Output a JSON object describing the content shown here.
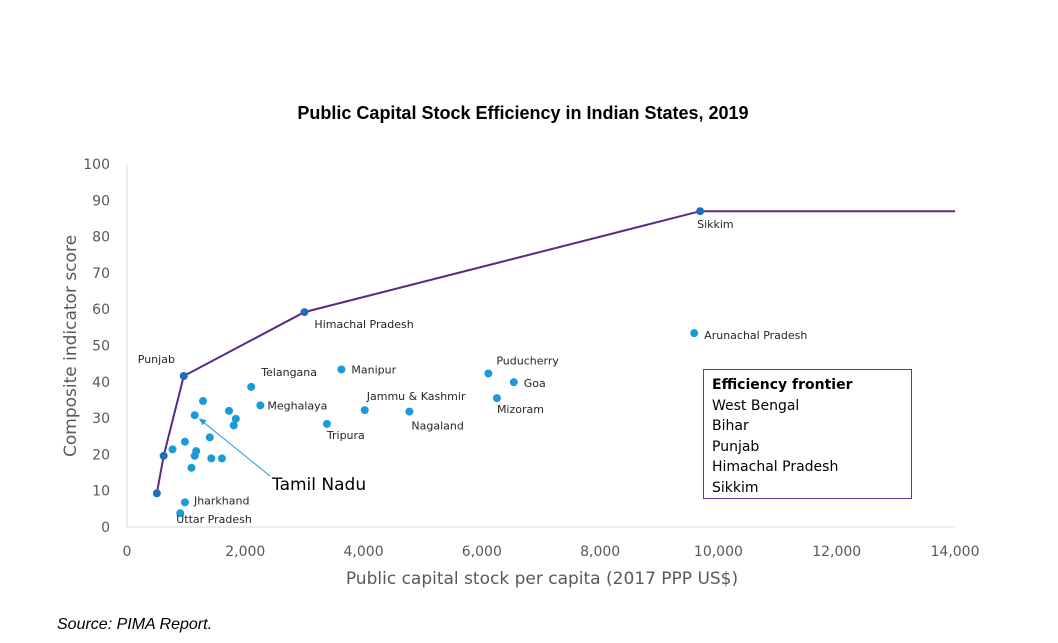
{
  "chart_data": {
    "type": "scatter",
    "title": "Public Capital Stock Efficiency in Indian States, 2019",
    "xlabel": "Public capital stock per capita (2017 PPP US$)",
    "ylabel": "Composite indicator score",
    "xlim": [
      0,
      14000
    ],
    "ylim": [
      0,
      100
    ],
    "xticks": [
      "0",
      "2,000",
      "4,000",
      "6,000",
      "8,000",
      "10,000",
      "12,000",
      "14,000"
    ],
    "yticks": [
      "0",
      "10",
      "20",
      "30",
      "40",
      "50",
      "60",
      "70",
      "80",
      "90",
      "100"
    ],
    "grid": false,
    "colors": {
      "points": "#1a9ad6",
      "frontier": "#5b2a86",
      "legend_border": "#7030a0"
    },
    "points": [
      {
        "label": "Punjab",
        "x": 960,
        "y": 41.6
      },
      {
        "label": "",
        "x": 1285,
        "y": 34.7
      },
      {
        "label": "Telangana",
        "x": 2100,
        "y": 38.6
      },
      {
        "label": "",
        "x": 1145,
        "y": 30.8
      },
      {
        "label": "",
        "x": 1725,
        "y": 32
      },
      {
        "label": "Meghalaya",
        "x": 2255,
        "y": 33.5
      },
      {
        "label": "",
        "x": 1840,
        "y": 29.8
      },
      {
        "label": "",
        "x": 1805,
        "y": 28
      },
      {
        "label": "Tripura",
        "x": 3380,
        "y": 28.4
      },
      {
        "label": "",
        "x": 1400,
        "y": 24.7
      },
      {
        "label": "",
        "x": 980,
        "y": 23.5
      },
      {
        "label": "",
        "x": 770,
        "y": 21.4
      },
      {
        "label": "",
        "x": 620,
        "y": 19.6
      },
      {
        "label": "",
        "x": 1170,
        "y": 20.9
      },
      {
        "label": "",
        "x": 1145,
        "y": 19.6
      },
      {
        "label": "",
        "x": 1425,
        "y": 18.9
      },
      {
        "label": "",
        "x": 1605,
        "y": 18.9
      },
      {
        "label": "",
        "x": 1090,
        "y": 16.3
      },
      {
        "label": "",
        "x": 505,
        "y": 9.3
      },
      {
        "label": "Jharkhand",
        "x": 980,
        "y": 6.8
      },
      {
        "label": "Uttar Pradesh",
        "x": 900,
        "y": 3.8
      },
      {
        "label": "Manipur",
        "x": 3625,
        "y": 43.4
      },
      {
        "label": "Jammu & Kashmir",
        "x": 4020,
        "y": 32.2
      },
      {
        "label": "Nagaland",
        "x": 4775,
        "y": 31.8
      },
      {
        "label": "Puducherry",
        "x": 6110,
        "y": 42.3
      },
      {
        "label": "Goa",
        "x": 6540,
        "y": 39.9
      },
      {
        "label": "Mizoram",
        "x": 6255,
        "y": 35.5
      },
      {
        "label": "Himachal Pradesh",
        "x": 3000,
        "y": 59.2
      },
      {
        "label": "Sikkim",
        "x": 9690,
        "y": 87
      },
      {
        "label": "Arunachal Pradesh",
        "x": 9590,
        "y": 53.4
      }
    ],
    "frontier": [
      {
        "x": 505,
        "y": 9.3
      },
      {
        "x": 620,
        "y": 19.6
      },
      {
        "x": 960,
        "y": 41.6
      },
      {
        "x": 3000,
        "y": 59.2
      },
      {
        "x": 9690,
        "y": 87
      },
      {
        "x": 14000,
        "y": 87
      }
    ],
    "annotation": {
      "text": "Tamil Nadu",
      "x": 1145,
      "y": 30.8
    },
    "legend": {
      "title": "Efficiency frontier",
      "items": [
        "West Bengal",
        "Bihar",
        "Punjab",
        "Himachal Pradesh",
        "Sikkim"
      ]
    }
  },
  "source": "Source: PIMA Report."
}
